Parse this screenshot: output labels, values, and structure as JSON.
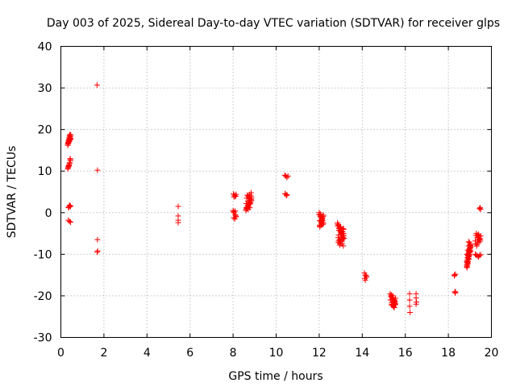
{
  "chart_data": {
    "type": "scatter",
    "title": "Day 003 of 2025, Sidereal Day-to-day VTEC variation (SDTVAR) for receiver glps",
    "xlabel": "GPS time / hours",
    "ylabel": "SDTVAR / TECUs",
    "xlim": [
      0,
      20
    ],
    "ylim": [
      -30,
      40
    ],
    "x_ticks": [
      0,
      2,
      4,
      6,
      8,
      10,
      12,
      14,
      16,
      18,
      20
    ],
    "y_ticks": [
      -30,
      -20,
      -10,
      0,
      10,
      20,
      30,
      40
    ],
    "grid": true,
    "marker": "plus",
    "color": "#ff0000",
    "series": [
      {
        "name": "SDTVAR",
        "x": [
          0.32,
          0.34,
          0.36,
          0.38,
          0.4,
          0.42,
          0.44,
          0.46,
          0.34,
          0.37,
          0.4,
          0.43,
          0.46,
          0.32,
          0.36,
          0.4,
          0.44,
          0.35,
          0.39,
          0.43,
          0.32,
          0.35,
          0.38,
          0.41,
          0.44,
          0.36,
          0.4,
          0.44,
          0.33,
          0.38,
          0.43,
          0.35,
          0.4,
          0.45,
          0.38,
          0.43,
          0.35,
          0.4,
          0.45,
          1.68,
          1.7,
          1.7,
          1.69,
          1.71,
          5.45,
          5.45,
          5.45,
          5.45,
          8.02,
          8.06,
          8.1,
          8.14,
          8.04,
          8.12,
          8.0,
          8.05,
          8.1,
          8.14,
          8.03,
          8.08,
          8.12,
          8.02,
          8.1,
          8.6,
          8.65,
          8.7,
          8.75,
          8.8,
          8.85,
          8.62,
          8.68,
          8.74,
          8.8,
          8.86,
          8.6,
          8.66,
          8.72,
          8.78,
          8.84,
          8.63,
          8.7,
          8.77,
          8.84,
          8.61,
          8.69,
          8.76,
          8.83,
          8.64,
          8.72,
          8.8,
          8.66,
          8.74,
          8.82,
          8.7,
          8.78,
          10.4,
          10.45,
          10.5,
          10.55,
          10.43,
          10.5,
          10.42,
          10.48,
          12.0,
          12.05,
          12.1,
          12.15,
          12.2,
          12.02,
          12.08,
          12.14,
          12.2,
          12.04,
          12.1,
          12.16,
          12.0,
          12.06,
          12.12,
          12.18,
          12.03,
          12.09,
          12.15,
          12.05,
          12.12,
          12.02,
          12.1,
          12.18,
          12.85,
          12.9,
          12.95,
          13.0,
          13.05,
          13.1,
          13.15,
          12.88,
          12.94,
          13.0,
          13.06,
          13.12,
          12.86,
          12.92,
          12.98,
          13.04,
          13.1,
          13.16,
          12.9,
          12.96,
          13.02,
          13.08,
          13.14,
          12.87,
          12.95,
          13.03,
          13.11,
          12.89,
          12.97,
          13.05,
          13.13,
          12.92,
          13.0,
          13.08,
          12.95,
          13.05,
          13.12,
          12.9,
          13.0,
          13.1,
          14.1,
          14.15,
          14.2,
          14.12,
          14.18,
          14.14,
          15.3,
          15.35,
          15.4,
          15.45,
          15.5,
          15.55,
          15.33,
          15.39,
          15.45,
          15.51,
          15.31,
          15.37,
          15.43,
          15.49,
          15.55,
          15.35,
          15.42,
          15.49,
          15.38,
          15.46,
          15.53,
          15.4,
          15.48,
          15.36,
          15.44,
          15.52,
          15.42,
          15.5,
          16.2,
          16.2,
          16.2,
          16.22,
          16.5,
          16.5,
          16.52,
          16.5,
          18.28,
          18.33,
          18.3,
          18.32,
          18.28,
          18.33,
          18.85,
          18.88,
          18.92,
          18.96,
          19.0,
          19.04,
          18.86,
          18.9,
          18.94,
          18.98,
          19.02,
          18.87,
          18.91,
          18.95,
          18.99,
          19.03,
          18.85,
          18.89,
          18.93,
          18.97,
          19.01,
          18.88,
          18.92,
          18.96,
          19.0,
          19.04,
          18.86,
          18.9,
          18.94,
          18.98,
          18.87,
          18.91,
          18.95,
          18.99,
          18.89,
          18.93,
          18.97,
          19.01,
          18.92,
          18.96,
          19.0,
          18.88,
          18.94,
          19.25,
          19.3,
          19.35,
          19.4,
          19.45,
          19.5,
          19.28,
          19.34,
          19.4,
          19.46,
          19.26,
          19.32,
          19.38,
          19.44,
          19.5,
          19.3,
          19.36,
          19.42,
          19.48,
          19.25,
          19.33,
          19.41,
          19.49,
          19.45,
          19.48,
          19.5
        ],
        "y": [
          16.5,
          17.0,
          17.5,
          18.0,
          18.5,
          18.8,
          18.2,
          17.6,
          16.8,
          17.3,
          17.8,
          18.3,
          18.7,
          16.2,
          16.9,
          17.4,
          17.9,
          16.6,
          17.1,
          17.7,
          10.5,
          11.0,
          11.5,
          12.0,
          12.5,
          11.2,
          11.8,
          12.8,
          10.8,
          11.4,
          13.0,
          1.2,
          1.8,
          1.5,
          1.4,
          1.6,
          -1.8,
          -2.1,
          -2.3,
          30.7,
          10.2,
          -6.5,
          -9.5,
          -9.2,
          1.5,
          -0.8,
          -1.8,
          -2.4,
          4.5,
          4.2,
          4.0,
          4.4,
          3.8,
          3.9,
          0.5,
          0.0,
          -0.5,
          -1.0,
          -1.2,
          -1.5,
          -0.8,
          0.2,
          0.4,
          0.5,
          1.0,
          1.5,
          2.0,
          2.5,
          3.0,
          1.2,
          1.8,
          2.4,
          3.0,
          3.6,
          0.8,
          1.4,
          2.0,
          2.6,
          3.2,
          3.5,
          4.0,
          4.4,
          4.8,
          2.2,
          2.8,
          3.4,
          4.0,
          1.0,
          1.6,
          2.2,
          4.2,
          3.8,
          2.6,
          0.8,
          1.2,
          9.0,
          8.8,
          8.5,
          8.8,
          4.5,
          4.3,
          4.6,
          4.1,
          -0.5,
          -1.0,
          -1.5,
          -2.0,
          -2.5,
          -3.0,
          -2.2,
          -1.4,
          -0.6,
          -3.2,
          -2.6,
          -1.8,
          0.0,
          -0.8,
          -1.6,
          -2.8,
          -3.4,
          -2.0,
          -1.2,
          -0.3,
          -2.4,
          -1.9,
          -3.0,
          -0.9,
          -2.5,
          -3.0,
          -3.5,
          -4.0,
          -4.5,
          -5.0,
          -5.5,
          -6.0,
          -6.5,
          -7.0,
          -7.5,
          -8.0,
          -3.2,
          -3.8,
          -4.4,
          -5.0,
          -5.6,
          -6.2,
          -6.8,
          -7.4,
          -5.2,
          -4.6,
          -4.0,
          -2.8,
          -3.6,
          -4.8,
          -6.0,
          -7.2,
          -6.6,
          -5.8,
          -5.0,
          -4.2,
          -3.4,
          -6.4,
          -7.8,
          -7.0,
          -6.2,
          -5.4,
          -4.6,
          -3.8,
          -14.5,
          -15.0,
          -15.5,
          -15.8,
          -15.2,
          -16.2,
          -19.5,
          -20.0,
          -20.5,
          -21.0,
          -21.5,
          -22.0,
          -20.2,
          -20.8,
          -21.4,
          -22.2,
          -21.0,
          -21.6,
          -22.4,
          -22.8,
          -20.6,
          -19.8,
          -20.4,
          -21.2,
          -22.0,
          -22.6,
          -21.8,
          -20.4,
          -21.6,
          -22.2,
          -20.8,
          -21.4,
          -20.0,
          -21.0,
          -19.5,
          -21.0,
          -22.5,
          -24.0,
          -19.5,
          -20.5,
          -21.5,
          -22.0,
          -15.0,
          -14.8,
          -19.0,
          -19.3,
          -15.2,
          -19.1,
          -13.0,
          -12.0,
          -11.0,
          -10.0,
          -9.0,
          -8.0,
          -12.5,
          -11.5,
          -10.5,
          -9.5,
          -8.5,
          -13.2,
          -12.2,
          -11.2,
          -10.2,
          -9.2,
          -11.8,
          -10.8,
          -9.8,
          -8.8,
          -7.8,
          -12.8,
          -11.8,
          -10.6,
          -9.4,
          -8.2,
          -10.0,
          -9.0,
          -8.0,
          -7.2,
          -11.4,
          -10.4,
          -9.4,
          -8.4,
          -12.4,
          -11.0,
          -9.6,
          -7.6,
          -10.2,
          -9.2,
          -8.6,
          -12.0,
          -7.0,
          -10.0,
          -10.2,
          -10.4,
          -10.6,
          -10.3,
          -10.1,
          -5.5,
          -6.0,
          -6.5,
          -7.0,
          -7.5,
          -8.0,
          -7.2,
          -6.4,
          -5.6,
          -5.0,
          -5.4,
          -5.8,
          -6.2,
          -6.8,
          -7.6,
          -5.2,
          -6.6,
          1.0,
          1.2,
          0.8
        ]
      }
    ]
  }
}
